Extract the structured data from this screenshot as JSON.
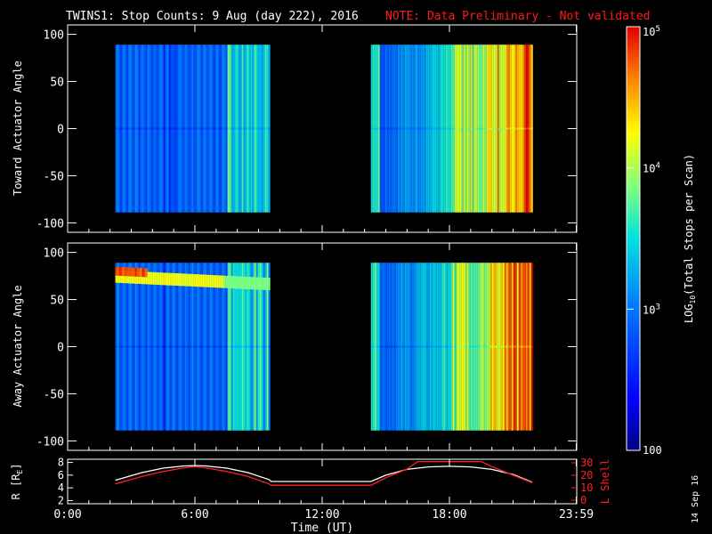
{
  "header": {
    "title": "TWINS1: Stop Counts:  9 Aug (day 222), 2016",
    "note": "NOTE: Data Preliminary - Not validated"
  },
  "stamp": "14 Sep 16",
  "colors": {
    "background": "#000000",
    "axis": "#ffffff",
    "note": "#ff1a1a",
    "lshell": "#ff2020",
    "radius": "#ffffff"
  },
  "chart_data": [
    {
      "type": "heatmap",
      "name": "toward",
      "ylabel": "Toward Actuator Angle",
      "ylim": [
        -110,
        110
      ],
      "yticks": [
        100,
        50,
        0,
        -50,
        -100
      ],
      "xlim": [
        0,
        24
      ],
      "data_blocks": [
        {
          "start": 2.25,
          "end": 9.5,
          "angle_range": [
            -89,
            89
          ]
        },
        {
          "start": 14.3,
          "end": 21.9,
          "angle_range": [
            -89,
            89
          ]
        }
      ]
    },
    {
      "type": "heatmap",
      "name": "away",
      "ylabel": "Away Actuator Angle",
      "ylim": [
        -110,
        110
      ],
      "yticks": [
        100,
        50,
        0,
        -50,
        -100
      ],
      "xlim": [
        0,
        24
      ],
      "data_blocks": [
        {
          "start": 2.25,
          "end": 9.5,
          "angle_range": [
            -89,
            89
          ],
          "band_angle": 75
        },
        {
          "start": 14.3,
          "end": 21.9,
          "angle_range": [
            -89,
            89
          ]
        }
      ]
    },
    {
      "type": "line",
      "name": "ephemeris",
      "ylabel_left": "R [R",
      "ylabel_left_sub": "E",
      "ylabel_left_end": "]",
      "ylabel_right": "L Shell",
      "ylim_left": [
        1.5,
        8.5
      ],
      "yticks_left": [
        "8",
        "6",
        "4",
        "2"
      ],
      "yticks_left_values": [
        8,
        6,
        4,
        2
      ],
      "ylim_right": [
        0,
        30
      ],
      "yticks_right": [
        "30",
        "20",
        "10",
        "0"
      ],
      "yticks_right_values": [
        30,
        20,
        10,
        0
      ],
      "xlabel": "Time (UT)",
      "xlim": [
        0,
        24
      ],
      "xticks": [
        "0:00",
        "6:00",
        "12:00",
        "18:00",
        "23:59"
      ],
      "xticks_values": [
        0,
        6,
        12,
        18,
        23.98
      ],
      "series": [
        {
          "axis": "left",
          "x": [
            2.25,
            3.5,
            4.5,
            5.5,
            6.0,
            6.5,
            7.5,
            8.5,
            9.5,
            9.6,
            14.3,
            15.0,
            16.0,
            17.0,
            18.0,
            19.0,
            20.0,
            21.0,
            21.9
          ],
          "y": [
            5.2,
            6.4,
            7.1,
            7.45,
            7.5,
            7.45,
            7.1,
            6.4,
            5.3,
            5.0,
            5.0,
            6.0,
            6.9,
            7.3,
            7.4,
            7.3,
            6.9,
            6.1,
            4.9
          ]
        },
        {
          "axis": "right",
          "x": [
            2.25,
            3.5,
            4.5,
            5.5,
            6.0,
            6.5,
            7.5,
            8.5,
            9.5,
            9.6,
            14.3,
            15.0,
            16.0,
            16.5,
            19.5,
            20.0,
            21.0,
            21.9
          ],
          "y": [
            13,
            19,
            23,
            26,
            27,
            26,
            23,
            19,
            13,
            12,
            12,
            18,
            25,
            31,
            31,
            27,
            20,
            14
          ]
        }
      ]
    },
    {
      "type": "heatmap",
      "name": "colorbar",
      "label": "LOG10(Total Stops per Scan)",
      "label_main": "LOG",
      "label_sub": "10",
      "label_rest": "(Total Stops per Scan)",
      "ticks": [
        {
          "base": "10",
          "exp": "5",
          "log_value": 5
        },
        {
          "base": "10",
          "exp": "4",
          "log_value": 4
        },
        {
          "base": "10",
          "exp": "3",
          "log_value": 3
        },
        {
          "base": "100",
          "exp": "",
          "log_value": 2
        }
      ],
      "range_log": [
        2,
        5
      ]
    }
  ]
}
